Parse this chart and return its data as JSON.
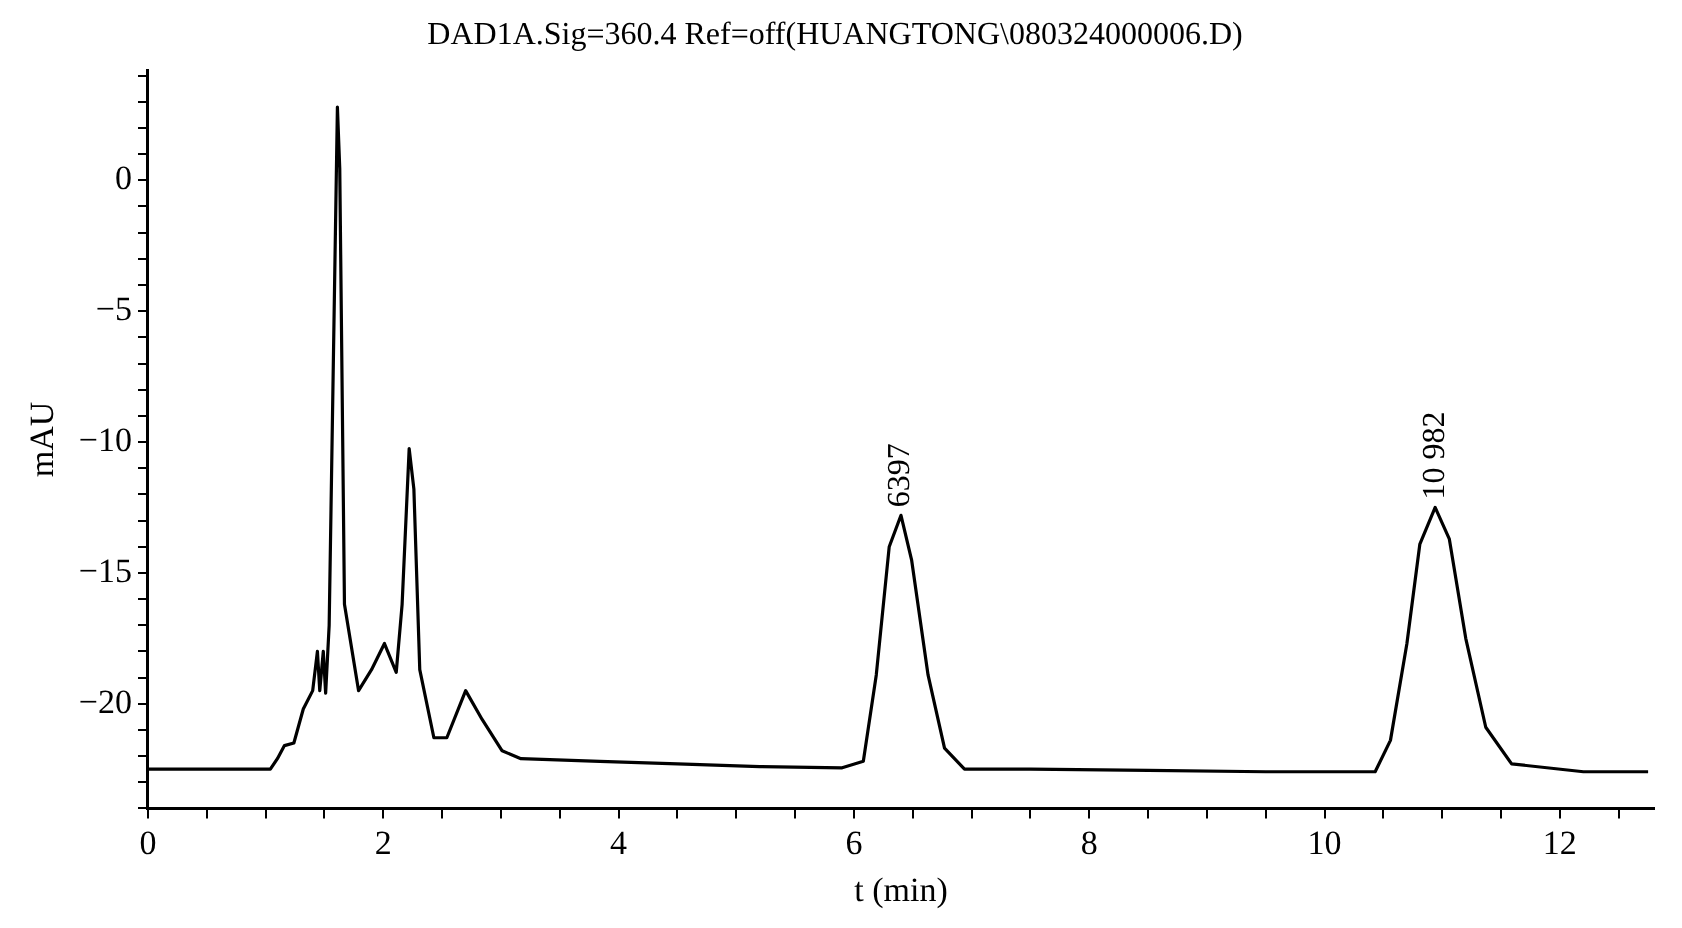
{
  "chart_data": {
    "type": "line",
    "title": "DAD1A.Sig=360.4 Ref=off(HUANGTONG\\080324000006.D)",
    "xlabel": "t (min)",
    "ylabel": "mAU",
    "xlim": [
      0,
      12.8
    ],
    "ylim": [
      -24,
      4.2
    ],
    "xticks": [
      0,
      {
        "value": 0.5,
        "label": null
      },
      {
        "value": 1,
        "label": null
      },
      {
        "value": 1.5,
        "label": null
      },
      2,
      {
        "value": 2.5,
        "label": null
      },
      {
        "value": 3,
        "label": null
      },
      {
        "value": 3.5,
        "label": null
      },
      4,
      {
        "value": 4.5,
        "label": null
      },
      {
        "value": 5,
        "label": null
      },
      {
        "value": 5.5,
        "label": null
      },
      6,
      {
        "value": 6.5,
        "label": null
      },
      {
        "value": 7,
        "label": null
      },
      {
        "value": 7.5,
        "label": null
      },
      8,
      {
        "value": 8.5,
        "label": null
      },
      {
        "value": 9,
        "label": null
      },
      {
        "value": 9.5,
        "label": null
      },
      10,
      {
        "value": 10.5,
        "label": null
      },
      {
        "value": 11,
        "label": null
      },
      {
        "value": 11.5,
        "label": null
      },
      12,
      {
        "value": 12.5,
        "label": null
      }
    ],
    "yticks": [
      {
        "value": -24,
        "label": null
      },
      {
        "value": -23,
        "label": null
      },
      {
        "value": -22,
        "label": null
      },
      {
        "value": -21,
        "label": null
      },
      -20,
      {
        "value": -19,
        "label": null
      },
      {
        "value": -18,
        "label": null
      },
      {
        "value": -17,
        "label": null
      },
      {
        "value": -16,
        "label": null
      },
      -15,
      {
        "value": -14,
        "label": null
      },
      {
        "value": -13,
        "label": null
      },
      {
        "value": -12,
        "label": null
      },
      {
        "value": -11,
        "label": null
      },
      -10,
      {
        "value": -9,
        "label": null
      },
      {
        "value": -8,
        "label": null
      },
      {
        "value": -7,
        "label": null
      },
      {
        "value": -6,
        "label": null
      },
      -5,
      {
        "value": -4,
        "label": null
      },
      {
        "value": -3,
        "label": null
      },
      {
        "value": -2,
        "label": null
      },
      {
        "value": -1,
        "label": null
      },
      0,
      {
        "value": 1,
        "label": null
      },
      {
        "value": 2,
        "label": null
      },
      {
        "value": 3,
        "label": null
      },
      {
        "value": 4,
        "label": null
      }
    ],
    "grid": false,
    "legend": false,
    "marker": "none",
    "line_style": "solid",
    "series": [
      {
        "color": "#000000",
        "x": [
          0,
          0.5,
          1.04,
          1.1,
          1.16,
          1.24,
          1.32,
          1.4,
          1.44,
          1.46,
          1.49,
          1.51,
          1.54,
          1.61,
          1.63,
          1.67,
          1.79,
          1.9,
          2.01,
          2.11,
          2.16,
          2.22,
          2.26,
          2.31,
          2.43,
          2.54,
          2.7,
          2.84,
          3.01,
          3.17,
          3.84,
          4.5,
          5.2,
          5.9,
          6.08,
          6.19,
          6.3,
          6.4,
          6.49,
          6.63,
          6.77,
          6.94,
          7.5,
          8.5,
          9.5,
          10.43,
          10.56,
          10.7,
          10.81,
          10.94,
          11.06,
          11.2,
          11.37,
          11.59,
          12.2,
          12.75
        ],
        "values": [
          -22.5,
          -22.5,
          -22.5,
          -22.1,
          -21.6,
          -21.5,
          -20.2,
          -19.5,
          -18.0,
          -19.5,
          -18.0,
          -19.6,
          -17.0,
          2.8,
          0.45,
          -16.2,
          -19.5,
          -18.7,
          -17.7,
          -18.8,
          -16.2,
          -10.25,
          -11.8,
          -18.7,
          -21.3,
          -21.3,
          -19.5,
          -20.6,
          -21.8,
          -22.1,
          -22.2,
          -22.3,
          -22.4,
          -22.45,
          -22.2,
          -18.9,
          -14.0,
          -12.8,
          -14.5,
          -18.9,
          -21.7,
          -22.5,
          -22.5,
          -22.55,
          -22.6,
          -22.6,
          -21.4,
          -17.7,
          -13.9,
          -12.5,
          -13.7,
          -17.5,
          -20.9,
          -22.3,
          -22.6,
          -22.6
        ]
      }
    ],
    "annotations": [
      {
        "text": "6397",
        "x": 6.4,
        "y": -12.8
      },
      {
        "text": "10 982",
        "x": 10.94,
        "y": -12.5
      }
    ]
  }
}
